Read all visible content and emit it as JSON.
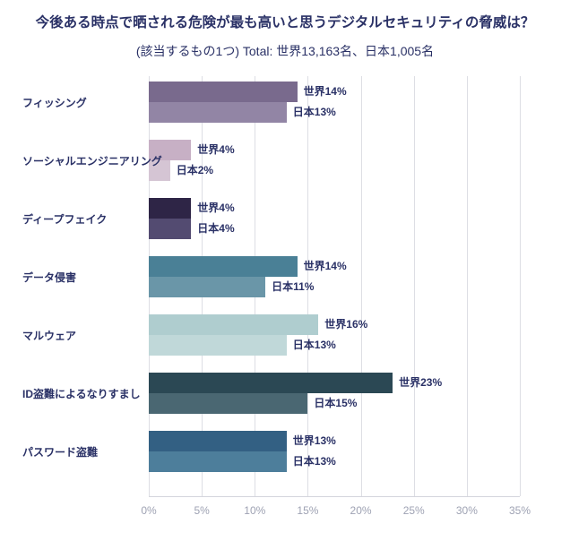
{
  "header": {
    "title": "今後ある時点で晒される危険が最も高いと思うデジタルセキュリティの脅威は？",
    "subtitle": "(該当するもの1つ) Total: 世界13,163名、日本1,005名"
  },
  "chart_data": {
    "type": "bar",
    "orientation": "horizontal",
    "title": "今後ある時点で晒される危険が最も高いと思うデジタルセキュリティの脅威は？",
    "subtitle": "(該当するもの1つ) Total: 世界13,163名、日本1,005名",
    "categories": [
      "フィッシング",
      "ソーシャルエンジニアリング",
      "ディープフェイク",
      "データ侵害",
      "マルウェア",
      "ID盗難によるなりすまし",
      "パスワード盗難"
    ],
    "series": [
      {
        "name": "世界",
        "values": [
          14,
          4,
          4,
          14,
          16,
          23,
          13
        ]
      },
      {
        "name": "日本",
        "values": [
          13,
          2,
          4,
          11,
          13,
          15,
          13
        ]
      }
    ],
    "bar_labels": {
      "world": [
        "世界14%",
        "世界4%",
        "世界4%",
        "世界14%",
        "世界16%",
        "世界23%",
        "世界13%"
      ],
      "japan": [
        "日本13%",
        "日本2%",
        "日本4%",
        "日本11%",
        "日本13%",
        "日本15%",
        "日本13%"
      ]
    },
    "colors": {
      "world": [
        "#796A8D",
        "#C7B0C5",
        "#2E2546",
        "#4A8096",
        "#AFCDCF",
        "#2B4854",
        "#336083"
      ],
      "japan": [
        "#9285A5",
        "#D5C5D4",
        "#534B71",
        "#6A96A8",
        "#C0D8D9",
        "#4A6772",
        "#4D7E9B"
      ]
    },
    "xlim": [
      0,
      35
    ],
    "x_ticks": [
      "0%",
      "5%",
      "10%",
      "15%",
      "20%",
      "25%",
      "30%",
      "35%"
    ],
    "grid": true,
    "legend_position": "none",
    "text_color": "#2A3166",
    "axis_text_color": "#9EA2B3",
    "grid_color": "#DDDEE4"
  }
}
